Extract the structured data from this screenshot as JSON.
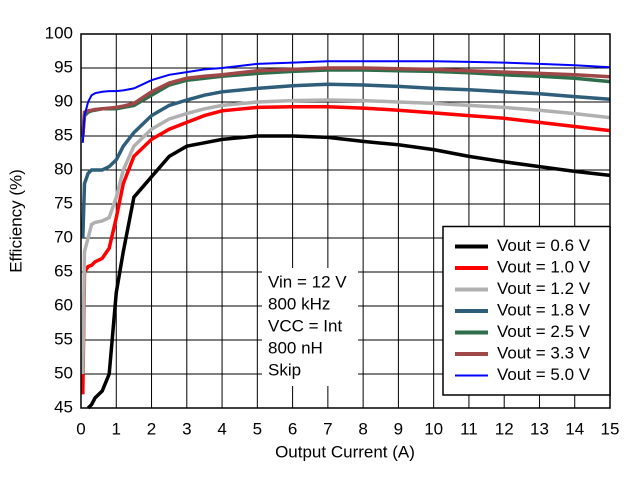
{
  "chart_data": {
    "type": "line",
    "xlabel": "Output Current (A)",
    "ylabel": "Efficiency (%)",
    "x": [
      0.05,
      0.1,
      0.2,
      0.3,
      0.4,
      0.6,
      0.8,
      1,
      1.2,
      1.5,
      2,
      2.5,
      3,
      3.5,
      4,
      5,
      6,
      7,
      8,
      9,
      10,
      11,
      12,
      13,
      14,
      15
    ],
    "series": [
      {
        "name": "Vout = 0.6 V",
        "color": "#000000",
        "values": [
          null,
          null,
          45,
          45.5,
          46.5,
          47.5,
          50,
          62,
          68,
          76,
          79,
          82,
          83.5,
          84,
          84.5,
          85,
          85,
          84.8,
          84.2,
          83.7,
          83,
          82,
          81.2,
          80.5,
          79.8,
          79.2
        ]
      },
      {
        "name": "Vout = 1.0 V",
        "color": "#ff0000",
        "values": [
          47,
          65,
          65.8,
          66,
          66.5,
          67,
          68.5,
          73,
          78,
          82,
          84.5,
          86,
          87,
          88,
          88.7,
          89.2,
          89.3,
          89.3,
          89.1,
          88.8,
          88.4,
          88,
          87.6,
          87,
          86.4,
          85.8
        ]
      },
      {
        "name": "Vout = 1.2 V",
        "color": "#b0b0b0",
        "values": [
          50,
          68,
          70,
          72,
          72.3,
          72.5,
          73,
          76,
          80,
          83.5,
          86,
          87.5,
          88.3,
          89,
          89.5,
          90,
          90.2,
          90.3,
          90.2,
          90,
          89.8,
          89.5,
          89.2,
          88.8,
          88.3,
          87.7
        ]
      },
      {
        "name": "Vout = 1.8 V",
        "color": "#2e5e7a",
        "values": [
          70,
          78,
          79.5,
          80,
          80,
          80,
          80.5,
          81.5,
          83.5,
          85.5,
          88,
          89.5,
          90.3,
          91,
          91.5,
          92,
          92.4,
          92.6,
          92.5,
          92.3,
          92,
          91.8,
          91.5,
          91.2,
          90.8,
          90.4
        ]
      },
      {
        "name": "Vout = 2.5 V",
        "color": "#2e6e4a",
        "values": [
          85,
          88,
          88.5,
          88.7,
          88.8,
          89,
          89,
          89,
          89.2,
          89.5,
          91,
          92.5,
          93.2,
          93.5,
          93.8,
          94.2,
          94.5,
          94.7,
          94.7,
          94.6,
          94.5,
          94.3,
          94,
          93.8,
          93.5,
          93
        ]
      },
      {
        "name": "Vout = 3.3 V",
        "color": "#a04848",
        "values": [
          85,
          88.5,
          88.7,
          88.8,
          88.9,
          89,
          89.1,
          89.2,
          89.4,
          89.8,
          91.5,
          92.8,
          93.5,
          93.8,
          94,
          94.6,
          94.8,
          95,
          95,
          94.9,
          94.8,
          94.6,
          94.4,
          94.2,
          94,
          93.7
        ]
      },
      {
        "name": "Vout = 5.0 V",
        "color": "#0000ff",
        "values": [
          84,
          88,
          90,
          91,
          91.3,
          91.5,
          91.6,
          91.6,
          91.7,
          92,
          93.2,
          94,
          94.4,
          94.8,
          95,
          95.6,
          95.8,
          96,
          96,
          96,
          96,
          95.9,
          95.8,
          95.6,
          95.4,
          95.1
        ]
      }
    ],
    "annotation": [
      "Vin = 12 V",
      "800 kHz",
      "VCC = Int",
      "800 nH",
      "Skip"
    ],
    "xlim": [
      0,
      15
    ],
    "xticks": [
      0,
      1,
      2,
      3,
      4,
      5,
      6,
      7,
      8,
      9,
      10,
      11,
      12,
      13,
      14,
      15
    ],
    "ylim": [
      45,
      100
    ],
    "yticks": [
      45,
      50,
      55,
      60,
      65,
      70,
      75,
      80,
      85,
      90,
      95,
      100
    ],
    "grid": true,
    "legend": "lower right"
  }
}
